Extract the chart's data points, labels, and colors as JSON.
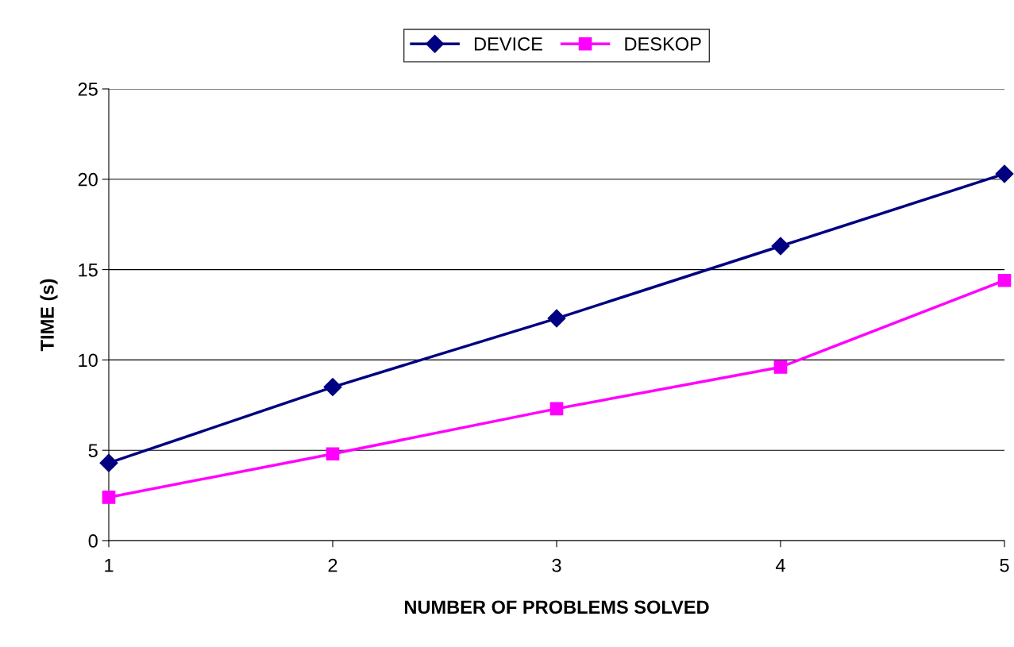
{
  "chart_data": {
    "type": "line",
    "xlabel": "NUMBER OF PROBLEMS SOLVED",
    "ylabel": "TIME (s)",
    "x": [
      1,
      2,
      3,
      4,
      5
    ],
    "series": [
      {
        "name": "DEVICE",
        "color": "#000080",
        "values": [
          4.3,
          8.5,
          12.3,
          16.3,
          20.3
        ],
        "marker": "diamond"
      },
      {
        "name": "DESKOP",
        "color": "#ff00ff",
        "values": [
          2.4,
          4.8,
          7.3,
          9.6,
          14.4
        ],
        "marker": "square"
      }
    ],
    "xlim": [
      1,
      5
    ],
    "xticks": [
      1,
      2,
      3,
      4,
      5
    ],
    "ylim": [
      0,
      25
    ],
    "yticks": [
      0,
      5,
      10,
      15,
      20,
      25
    ],
    "grid": "y",
    "legend": "top",
    "line_style": "solid"
  }
}
